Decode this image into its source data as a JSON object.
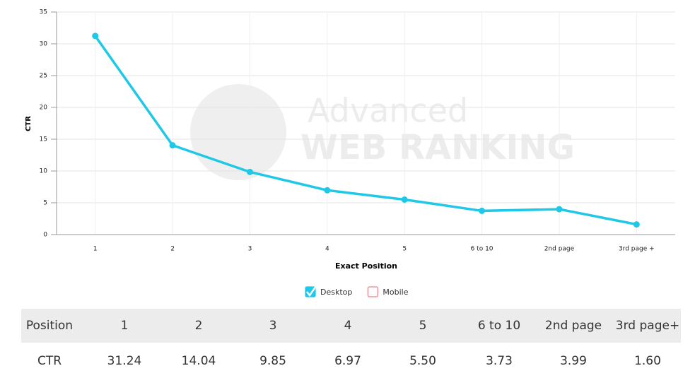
{
  "chart_data": {
    "type": "line",
    "watermark": [
      "Advanced",
      "WEB RANKING"
    ],
    "xlabel": "Exact Position",
    "ylabel": "CTR",
    "categories": [
      "1",
      "2",
      "3",
      "4",
      "5",
      "6 to 10",
      "2nd page",
      "3rd page +"
    ],
    "series": [
      {
        "name": "Desktop",
        "color": "#1ec8e6",
        "checked": true,
        "values": [
          31.24,
          14.04,
          9.85,
          6.97,
          5.5,
          3.73,
          3.99,
          1.6
        ]
      }
    ],
    "inactive_legend": [
      {
        "name": "Mobile",
        "color": "#e8808a",
        "checked": false
      }
    ],
    "ylim": [
      0,
      35
    ],
    "yticks": [
      0,
      5,
      10,
      15,
      20,
      25,
      30,
      35
    ],
    "grid": true
  },
  "table": {
    "header": [
      "Position",
      "1",
      "2",
      "3",
      "4",
      "5",
      "6 to 10",
      "2nd page",
      "3rd page+"
    ],
    "rows": [
      [
        "CTR",
        "31.24",
        "14.04",
        "9.85",
        "6.97",
        "5.50",
        "3.73",
        "3.99",
        "1.60"
      ]
    ]
  }
}
